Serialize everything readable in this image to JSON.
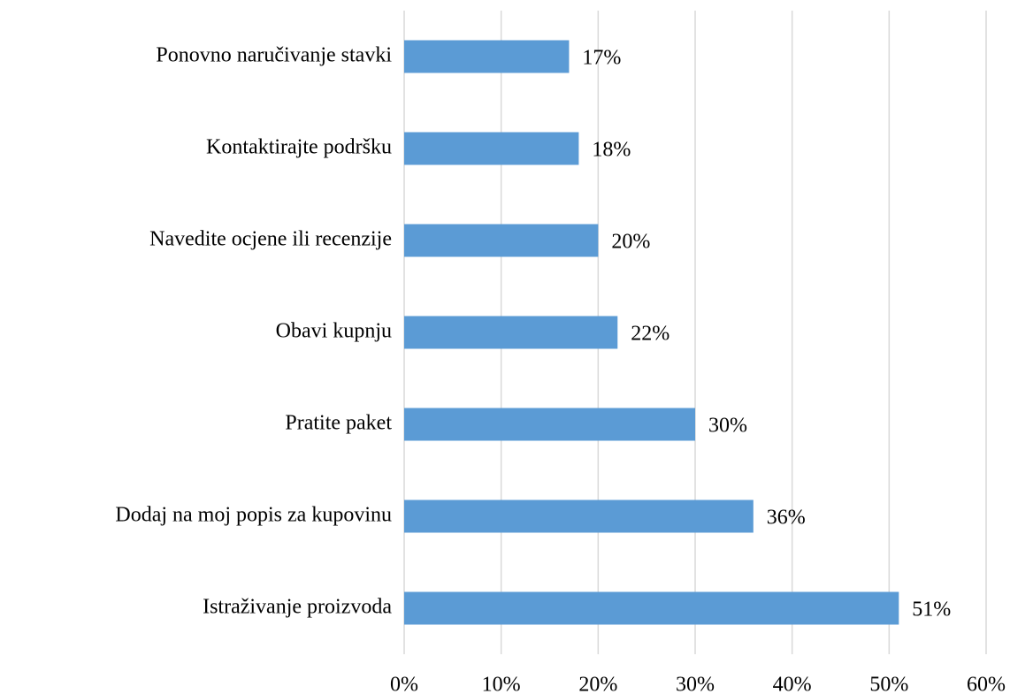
{
  "chart_data": {
    "type": "barh",
    "categories": [
      "Ponovno naručivanje stavki",
      "Kontaktirajte podršku",
      "Navedite ocjene ili recenzije",
      "Obavi kupnju",
      "Pratite paket",
      "Dodaj na moj popis za kupovinu",
      "Istraživanje proizvoda"
    ],
    "values": [
      17,
      18,
      20,
      22,
      30,
      36,
      51
    ],
    "value_labels": [
      "17%",
      "18%",
      "20%",
      "22%",
      "30%",
      "36%",
      "51%"
    ],
    "color": "#5b9bd5",
    "xlim": [
      0,
      60
    ],
    "xticks": [
      {
        "value": 0,
        "label": "0%"
      },
      {
        "value": 10,
        "label": "10%"
      },
      {
        "value": 20,
        "label": "20%"
      },
      {
        "value": 30,
        "label": "30%"
      },
      {
        "value": 40,
        "label": "40%"
      },
      {
        "value": 50,
        "label": "50%"
      },
      {
        "value": 60,
        "label": "60%"
      }
    ],
    "grid": true
  }
}
